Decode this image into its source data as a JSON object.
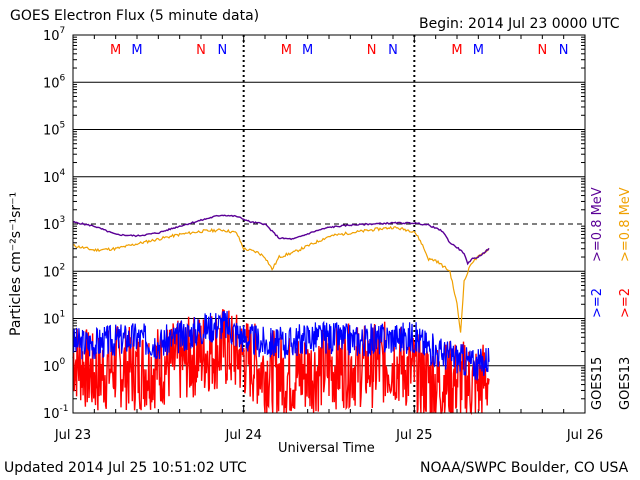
{
  "header": {
    "title": "GOES Electron Flux (5 minute data)",
    "begin": "Begin: 2014 Jul 23 0000 UTC"
  },
  "footer": {
    "updated": "Updated 2014 Jul 25 10:51:02 UTC",
    "credit": "NOAA/SWPC Boulder, CO USA"
  },
  "colors": {
    "red": "#ff0000",
    "blue": "#0000ff",
    "purple": "#5a0096",
    "orange": "#f0a000"
  },
  "chart_data": {
    "type": "line",
    "title": "GOES Electron Flux (5 minute data)",
    "xlabel": "Universal Time",
    "ylabel": "Particles cm⁻²s⁻¹sr⁻¹",
    "y_scale": "log",
    "ylim": [
      0.1,
      10000000
    ],
    "xlim": [
      "2014-07-23 00:00",
      "2014-07-26 00:00"
    ],
    "x_ticks": [
      "Jul 23",
      "Jul 24",
      "Jul 25",
      "Jul 26"
    ],
    "y_ticks": [
      {
        "base": "10",
        "exp": "-1"
      },
      {
        "base": "10",
        "exp": "0"
      },
      {
        "base": "10",
        "exp": "1"
      },
      {
        "base": "10",
        "exp": "2"
      },
      {
        "base": "10",
        "exp": "3"
      },
      {
        "base": "10",
        "exp": "4"
      },
      {
        "base": "10",
        "exp": "5"
      },
      {
        "base": "10",
        "exp": "6"
      },
      {
        "base": "10",
        "exp": "7"
      }
    ],
    "threshold": 1000,
    "grid": "horizontal at each decade; dashed at 10^3; dashed vertical at day boundaries",
    "markers": [
      {
        "label": "M",
        "time": "07-23 06:00",
        "color": "red"
      },
      {
        "label": "M",
        "time": "07-23 09:00",
        "color": "blue"
      },
      {
        "label": "N",
        "time": "07-23 18:00",
        "color": "red"
      },
      {
        "label": "N",
        "time": "07-23 21:00",
        "color": "blue"
      },
      {
        "label": "M",
        "time": "07-24 06:00",
        "color": "red"
      },
      {
        "label": "M",
        "time": "07-24 09:00",
        "color": "blue"
      },
      {
        "label": "N",
        "time": "07-24 18:00",
        "color": "red"
      },
      {
        "label": "N",
        "time": "07-24 21:00",
        "color": "blue"
      },
      {
        "label": "M",
        "time": "07-25 06:00",
        "color": "red"
      },
      {
        "label": "M",
        "time": "07-25 09:00",
        "color": "blue"
      },
      {
        "label": "N",
        "time": "07-25 18:00",
        "color": "red"
      },
      {
        "label": "N",
        "time": "07-25 21:00",
        "color": "blue"
      }
    ],
    "series": [
      {
        "name": "GOES15 >=0.8 MeV",
        "color": "purple",
        "x": [
          "07-23 00:00",
          "07-23 03:00",
          "07-23 06:00",
          "07-23 09:00",
          "07-23 12:00",
          "07-23 15:00",
          "07-23 18:00",
          "07-23 20:00",
          "07-23 21:00",
          "07-23 23:00",
          "07-24 01:00",
          "07-24 03:00",
          "07-24 04:00",
          "07-24 05:00",
          "07-24 07:00",
          "07-24 10:00",
          "07-24 12:00",
          "07-24 15:00",
          "07-24 18:00",
          "07-24 21:00",
          "07-25 00:00",
          "07-25 02:00",
          "07-25 04:00",
          "07-25 05:00",
          "07-25 06:00",
          "07-25 07:00",
          "07-25 07:30",
          "07-25 08:00",
          "07-25 09:00",
          "07-25 10:30"
        ],
        "y": [
          1100,
          900,
          600,
          560,
          650,
          900,
          1200,
          1450,
          1550,
          1450,
          1100,
          1000,
          700,
          500,
          480,
          700,
          850,
          950,
          1000,
          1050,
          1050,
          950,
          700,
          400,
          320,
          240,
          140,
          180,
          200,
          300
        ]
      },
      {
        "name": "GOES13 >=0.8 MeV",
        "color": "orange",
        "x": [
          "07-23 00:00",
          "07-23 03:00",
          "07-23 06:00",
          "07-23 09:00",
          "07-23 12:00",
          "07-23 15:00",
          "07-23 18:00",
          "07-23 21:00",
          "07-23 23:00",
          "07-24 00:00",
          "07-24 02:00",
          "07-24 03:00",
          "07-24 04:00",
          "07-24 05:00",
          "07-24 07:00",
          "07-24 10:00",
          "07-24 12:00",
          "07-24 15:00",
          "07-24 18:00",
          "07-24 21:00",
          "07-25 00:00",
          "07-25 01:00",
          "07-25 02:00",
          "07-25 03:00",
          "07-25 04:00",
          "07-25 05:00",
          "07-25 06:00",
          "07-25 06:30",
          "07-25 07:00",
          "07-25 08:00",
          "07-25 09:00",
          "07-25 10:30"
        ],
        "y": [
          350,
          280,
          300,
          380,
          480,
          600,
          700,
          750,
          650,
          300,
          250,
          200,
          110,
          200,
          250,
          400,
          550,
          650,
          750,
          850,
          700,
          400,
          180,
          170,
          130,
          100,
          20,
          5,
          60,
          150,
          200,
          300
        ]
      },
      {
        "name": "GOES15 >=2 MeV",
        "color": "blue",
        "x": [
          "07-23 00:00",
          "07-23 03:00",
          "07-23 06:00",
          "07-23 09:00",
          "07-23 12:00",
          "07-23 15:00",
          "07-23 18:00",
          "07-23 21:00",
          "07-24 00:00",
          "07-24 03:00",
          "07-24 06:00",
          "07-24 09:00",
          "07-24 12:00",
          "07-24 15:00",
          "07-24 18:00",
          "07-24 21:00",
          "07-25 00:00",
          "07-25 03:00",
          "07-25 06:00",
          "07-25 09:00",
          "07-25 10:30"
        ],
        "y": [
          3,
          3,
          3.5,
          4,
          3,
          4,
          6,
          8,
          4,
          3,
          3,
          4,
          4,
          3.5,
          3.5,
          4,
          4,
          2,
          1.5,
          1.0,
          1.5
        ]
      },
      {
        "name": "GOES13 >=2 MeV",
        "color": "red",
        "x": [
          "07-23 00:00",
          "07-23 03:00",
          "07-23 06:00",
          "07-23 09:00",
          "07-23 12:00",
          "07-23 15:00",
          "07-23 18:00",
          "07-23 21:00",
          "07-24 00:00",
          "07-24 03:00",
          "07-24 06:00",
          "07-24 09:00",
          "07-24 12:00",
          "07-24 15:00",
          "07-24 18:00",
          "07-24 21:00",
          "07-25 00:00",
          "07-25 03:00",
          "07-25 06:00",
          "07-25 09:00",
          "07-25 10:30"
        ],
        "y": [
          1.5,
          0.6,
          1.0,
          0.8,
          1.0,
          1.2,
          1.8,
          2.5,
          1.5,
          0.8,
          0.6,
          0.7,
          0.9,
          1.0,
          1.0,
          1.2,
          0.7,
          0.4,
          0.5,
          0.4,
          0.6
        ]
      }
    ],
    "legend": [
      {
        "text": ">=0.8  MeV",
        "color": "orange",
        "side": "right-outer"
      },
      {
        "text": ">=2",
        "color": "red",
        "side": "right-outer"
      },
      {
        "text": "GOES13",
        "color": "black",
        "side": "right-outer"
      },
      {
        "text": ">=0.8  MeV",
        "color": "purple",
        "side": "right-inner"
      },
      {
        "text": ">=2",
        "color": "blue",
        "side": "right-inner"
      },
      {
        "text": "GOES15",
        "color": "black",
        "side": "right-inner"
      }
    ]
  }
}
